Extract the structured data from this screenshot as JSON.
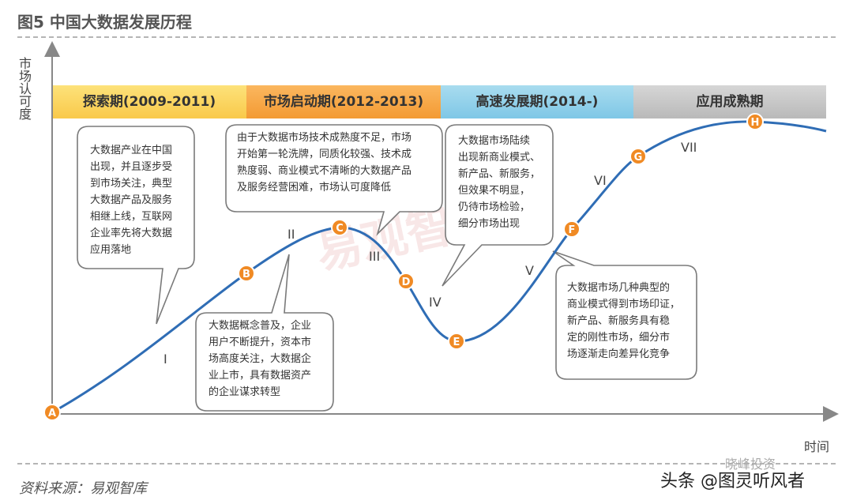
{
  "figure": {
    "title": "图5 中国大数据发展历程",
    "y_axis_label": "市场认可度",
    "x_axis_label": "时间",
    "source": "资料来源：易观智库",
    "watermark": "易观智库",
    "credit": "头条 @图灵听风者",
    "wechat": "晓峰投资"
  },
  "phases": [
    {
      "label": "探索期(2009-2011)",
      "color": "#f9c94a"
    },
    {
      "label": "市场启动期(2012-2013)",
      "color": "#f39a33"
    },
    {
      "label": "高速发展期(2014-)",
      "color": "#7fc7e6"
    },
    {
      "label": "应用成熟期",
      "color": "#b9b9b9"
    }
  ],
  "points": [
    "A",
    "B",
    "C",
    "D",
    "E",
    "F",
    "G",
    "H"
  ],
  "stages": [
    "I",
    "II",
    "III",
    "IV",
    "V",
    "VI",
    "VII"
  ],
  "bubbles": [
    {
      "text": "大数据产业在中国\n出现，并且逐步受\n到市场关注，典型\n大数据产品及服务\n相继上线，互联网\n企业率先将大数据\n应用落地"
    },
    {
      "text": "由于大数据市场技术成熟度不足，市场\n开始第一轮洗牌，同质化较强、技术成\n熟度弱、商业模式不清晰的大数据产品\n及服务经营困难，市场认可度降低"
    },
    {
      "text": "大数据市场陆续\n出现新商业模式、\n新产品、新服务，\n但效果不明显，\n仍待市场检验，\n细分市场出现"
    },
    {
      "text": "大数据概念普及，企业\n用户不断提升，资本市\n场高度关注，大数据企\n业上市，具有数据资产\n的企业谋求转型"
    },
    {
      "text": "大数据市场几种典型的\n商业模式得到市场印证，\n新产品、新服务具有稳\n定的刚性市场，细分市\n场逐渐走向差异化竞争"
    }
  ],
  "colors": {
    "curve": "#2f6db5",
    "marker": "#f08a24",
    "axis": "#888888"
  }
}
